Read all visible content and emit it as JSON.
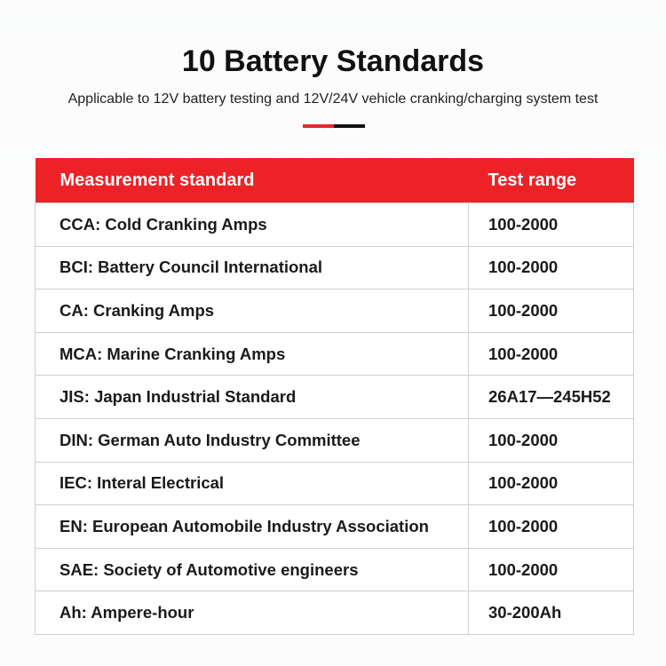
{
  "header": {
    "title": "10 Battery Standards",
    "subtitle": "Applicable to 12V battery testing and 12V/24V vehicle cranking/charging system test"
  },
  "table": {
    "columns": [
      "Measurement standard",
      "Test range"
    ],
    "rows": [
      [
        "CCA: Cold Cranking Amps",
        "100-2000"
      ],
      [
        "BCI: Battery Council International",
        "100-2000"
      ],
      [
        "CA: Cranking Amps",
        "100-2000"
      ],
      [
        "MCA: Marine Cranking Amps",
        "100-2000"
      ],
      [
        "JIS: Japan Industrial Standard",
        "26A17—245H52"
      ],
      [
        "DIN: German Auto Industry Committee",
        "100-2000"
      ],
      [
        "IEC: Interal Electrical",
        "100-2000"
      ],
      [
        "EN: European Automobile Industry Association",
        "100-2000"
      ],
      [
        "SAE: Society of Automotive engineers",
        "100-2000"
      ],
      [
        "Ah: Ampere-hour",
        "30-200Ah"
      ]
    ]
  }
}
